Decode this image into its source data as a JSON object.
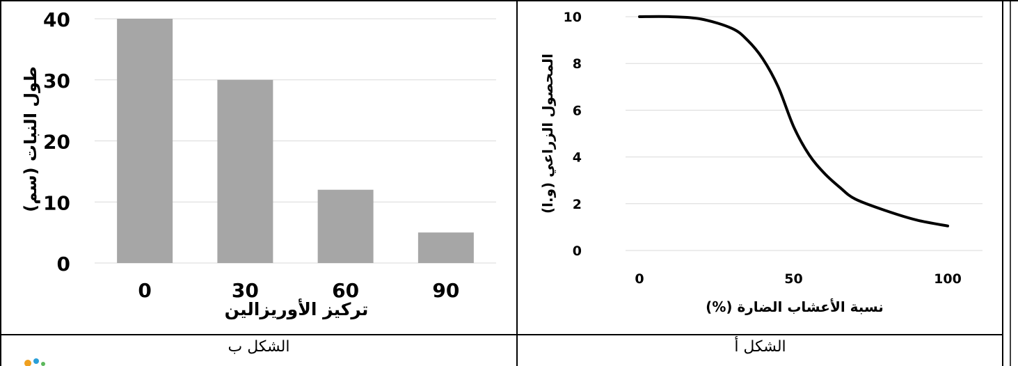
{
  "colors": {
    "bar": "#a6a6a6",
    "grid": "#d9d9d9",
    "line": "#000000",
    "border": "#000000"
  },
  "captions": {
    "left": "الشكل ب",
    "right": "الشكل أ"
  },
  "chart_data": [
    {
      "type": "bar",
      "categories": [
        "0",
        "30",
        "60",
        "90"
      ],
      "values": [
        40,
        30,
        12,
        5
      ],
      "xlabel": "تركيز الأوريزالين",
      "ylabel": "طول النبات (سم)",
      "ylim": [
        0,
        40
      ],
      "yticks": [
        0,
        10,
        20,
        30,
        40
      ],
      "grid": true
    },
    {
      "type": "line",
      "x": [
        0,
        10,
        20,
        30,
        35,
        40,
        45,
        50,
        55,
        60,
        65,
        70,
        80,
        90,
        100
      ],
      "y": [
        10,
        10,
        9.9,
        9.5,
        9,
        8.2,
        7,
        5.3,
        4.1,
        3.3,
        2.7,
        2.2,
        1.7,
        1.3,
        1.05
      ],
      "xlabel": "نسبة الأعشاب الضارة (%)",
      "ylabel": "المحصول الزراعي (و.ا)",
      "xlim": [
        0,
        100
      ],
      "ylim": [
        0,
        10
      ],
      "xticks": [
        0,
        50,
        100
      ],
      "yticks": [
        0,
        2,
        4,
        6,
        8,
        10
      ],
      "grid": true
    }
  ]
}
